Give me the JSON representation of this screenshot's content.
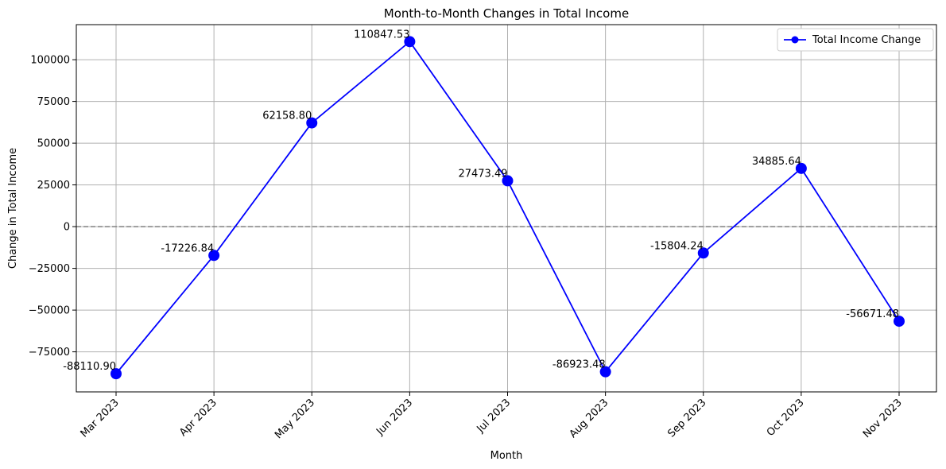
{
  "chart_data": {
    "type": "line",
    "title": "Month-to-Month Changes in Total Income",
    "xlabel": "Month",
    "ylabel": "Change in Total Income",
    "categories": [
      "Mar 2023",
      "Apr 2023",
      "May 2023",
      "Jun 2023",
      "Jul 2023",
      "Aug 2023",
      "Sep 2023",
      "Oct 2023",
      "Nov 2023"
    ],
    "series": [
      {
        "name": "Total Income Change",
        "color": "#0000ff",
        "values": [
          -88110.9,
          -17226.84,
          62158.8,
          110847.53,
          27473.49,
          -86923.48,
          -15804.24,
          34885.64,
          -56671.48
        ],
        "labels": [
          "-88110.90",
          "-17226.84",
          "62158.80",
          "110847.53",
          "27473.49",
          "-86923.48",
          "-15804.24",
          "34885.64",
          "-56671.48"
        ]
      }
    ],
    "yticks": [
      -75000,
      -50000,
      -25000,
      0,
      25000,
      50000,
      75000,
      100000
    ],
    "ytick_labels": [
      "−75000",
      "−50000",
      "−25000",
      "0",
      "25000",
      "50000",
      "75000",
      "100000"
    ],
    "ylim": [
      -99000,
      121000
    ],
    "reference_line": {
      "y": 0,
      "style": "dashed",
      "color": "#808080"
    },
    "grid": true,
    "legend_position": "top-right",
    "xtick_rotation": 45
  }
}
